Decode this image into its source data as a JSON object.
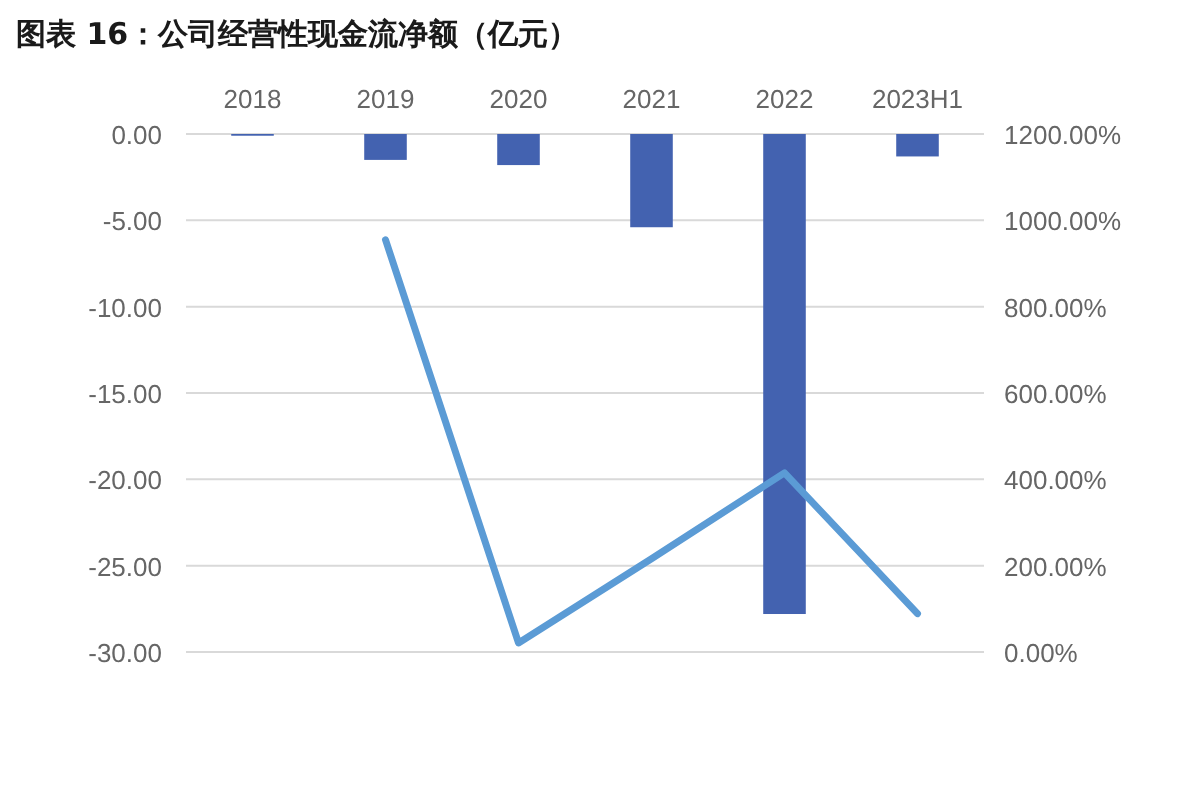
{
  "chart_data": {
    "type": "bar",
    "title": "图表 16：公司经营性现金流净额（亿元）",
    "categories": [
      "2018",
      "2019",
      "2020",
      "2021",
      "2022",
      "2023H1"
    ],
    "series": [
      {
        "color": "#4362b0",
        "values": [
          -0.1,
          -1.5,
          -1.8,
          -5.4,
          -27.8,
          -1.3
        ]
      },
      {
        "type": "line",
        "axis": "y2",
        "color": "#5b9bd5",
        "values": [
          null,
          955,
          21,
          216,
          415,
          89
        ]
      }
    ],
    "ylim": [
      -30,
      0
    ],
    "yticks": [
      {
        "value": 0,
        "label": "0.00"
      },
      {
        "value": -5,
        "label": "-5.00"
      },
      {
        "value": -10,
        "label": "-10.00"
      },
      {
        "value": -15,
        "label": "-15.00"
      },
      {
        "value": -20,
        "label": "-20.00"
      },
      {
        "value": -25,
        "label": "-25.00"
      },
      {
        "value": -30,
        "label": "-30.00"
      }
    ],
    "y2lim": [
      0,
      1200
    ],
    "y2ticks": [
      {
        "value": 0,
        "label": "0.00%"
      },
      {
        "value": 200,
        "label": "200.00%"
      },
      {
        "value": 400,
        "label": "400.00%"
      },
      {
        "value": 600,
        "label": "600.00%"
      },
      {
        "value": 800,
        "label": "800.00%"
      },
      {
        "value": 1000,
        "label": "1000.00%"
      },
      {
        "value": 1200,
        "label": "1200.00%"
      }
    ],
    "grid": "y"
  }
}
